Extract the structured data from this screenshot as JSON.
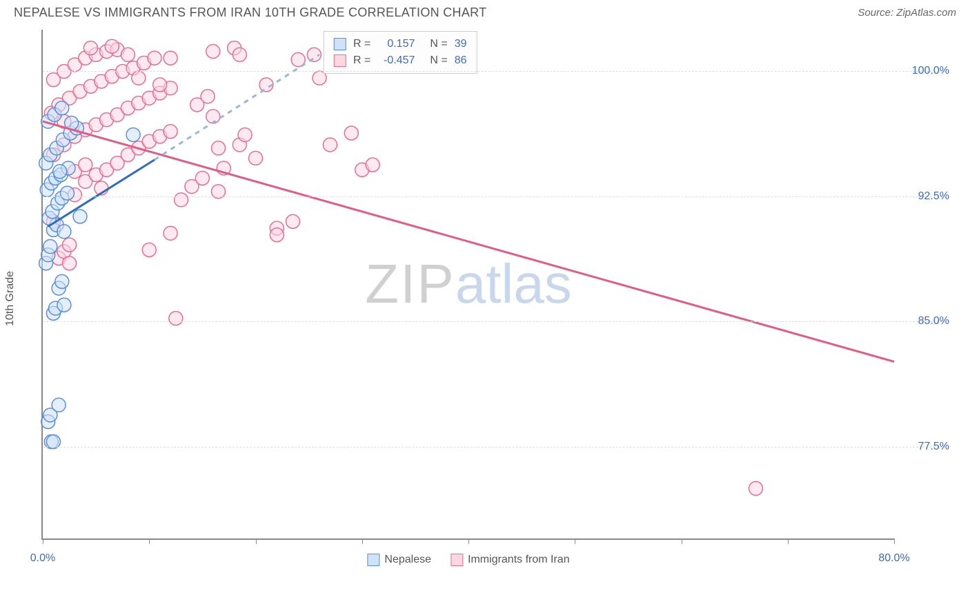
{
  "header": {
    "title": "NEPALESE VS IMMIGRANTS FROM IRAN 10TH GRADE CORRELATION CHART",
    "source_prefix": "Source: ",
    "source_name": "ZipAtlas.com"
  },
  "axes": {
    "y_label": "10th Grade",
    "x_min": 0.0,
    "x_max": 80.0,
    "y_min": 72.0,
    "y_max": 102.5,
    "x_ticks": [
      0,
      10,
      20,
      30,
      40,
      50,
      60,
      70,
      80
    ],
    "x_tick_labels": {
      "0": "0.0%",
      "80": "80.0%"
    },
    "y_ticks": [
      77.5,
      85.0,
      92.5,
      100.0
    ],
    "y_tick_labels": [
      "77.5%",
      "85.0%",
      "92.5%",
      "100.0%"
    ]
  },
  "watermark": {
    "part1": "ZIP",
    "part2": "atlas"
  },
  "series": {
    "a": {
      "name": "Nepalese",
      "fill": "#cfe2f7",
      "stroke": "#5a8fd6",
      "line_stroke": "#2f6cc0",
      "dash_stroke": "#9ab7d9",
      "R": "0.157",
      "N": "39",
      "trend_solid": {
        "x1": 0.5,
        "y1": 90.7,
        "x2": 10.5,
        "y2": 94.7
      },
      "trend_dash": {
        "x1": 10.5,
        "y1": 94.7,
        "x2": 26,
        "y2": 101.0
      },
      "points": [
        [
          0.5,
          79.0
        ],
        [
          0.7,
          79.4
        ],
        [
          0.8,
          77.8
        ],
        [
          1.0,
          77.8
        ],
        [
          1.5,
          80.0
        ],
        [
          1.0,
          85.5
        ],
        [
          1.2,
          85.8
        ],
        [
          1.5,
          87.0
        ],
        [
          1.8,
          87.4
        ],
        [
          2.0,
          86.0
        ],
        [
          0.3,
          88.5
        ],
        [
          0.5,
          89.0
        ],
        [
          0.7,
          89.5
        ],
        [
          1.0,
          90.5
        ],
        [
          1.3,
          90.8
        ],
        [
          0.6,
          91.2
        ],
        [
          0.9,
          91.6
        ],
        [
          1.4,
          92.1
        ],
        [
          1.8,
          92.4
        ],
        [
          2.3,
          92.7
        ],
        [
          0.4,
          92.9
        ],
        [
          0.8,
          93.3
        ],
        [
          1.2,
          93.6
        ],
        [
          1.7,
          93.8
        ],
        [
          2.4,
          94.2
        ],
        [
          0.3,
          94.5
        ],
        [
          0.7,
          95.0
        ],
        [
          1.3,
          95.4
        ],
        [
          1.9,
          95.9
        ],
        [
          2.6,
          96.3
        ],
        [
          3.2,
          96.6
        ],
        [
          0.5,
          97.0
        ],
        [
          1.1,
          97.4
        ],
        [
          1.8,
          97.8
        ],
        [
          2.7,
          96.9
        ],
        [
          8.5,
          96.2
        ],
        [
          3.5,
          91.3
        ],
        [
          2.0,
          90.4
        ],
        [
          1.6,
          94.0
        ]
      ]
    },
    "b": {
      "name": "Immigrants from Iran",
      "fill": "#fbd7e1",
      "stroke": "#e46f90",
      "line_stroke": "#e05c85",
      "R": "-0.457",
      "N": "86",
      "trend_solid": {
        "x1": 0.0,
        "y1": 97.0,
        "x2": 80.0,
        "y2": 82.6
      },
      "points": [
        [
          1.5,
          88.8
        ],
        [
          2.0,
          89.2
        ],
        [
          2.5,
          89.6
        ],
        [
          12.0,
          90.3
        ],
        [
          1.0,
          91.0
        ],
        [
          3.0,
          92.6
        ],
        [
          4.0,
          93.4
        ],
        [
          5.0,
          93.8
        ],
        [
          6.0,
          94.1
        ],
        [
          7.0,
          94.5
        ],
        [
          8.0,
          95.0
        ],
        [
          9.0,
          95.4
        ],
        [
          10.0,
          95.8
        ],
        [
          11.0,
          96.1
        ],
        [
          12.0,
          96.4
        ],
        [
          13.0,
          92.3
        ],
        [
          14.0,
          93.1
        ],
        [
          15.0,
          93.6
        ],
        [
          16.5,
          95.4
        ],
        [
          1.0,
          95.0
        ],
        [
          2.0,
          95.6
        ],
        [
          3.0,
          96.1
        ],
        [
          4.0,
          96.5
        ],
        [
          5.0,
          96.8
        ],
        [
          6.0,
          97.1
        ],
        [
          7.0,
          97.4
        ],
        [
          8.0,
          97.8
        ],
        [
          9.0,
          98.1
        ],
        [
          10.0,
          98.4
        ],
        [
          11.0,
          98.7
        ],
        [
          12.0,
          99.0
        ],
        [
          0.8,
          97.5
        ],
        [
          1.5,
          98.0
        ],
        [
          2.5,
          98.4
        ],
        [
          3.5,
          98.8
        ],
        [
          4.5,
          99.1
        ],
        [
          5.5,
          99.4
        ],
        [
          6.5,
          99.7
        ],
        [
          7.5,
          100.0
        ],
        [
          8.5,
          100.2
        ],
        [
          9.5,
          100.5
        ],
        [
          1.0,
          99.5
        ],
        [
          2.0,
          100.0
        ],
        [
          3.0,
          100.4
        ],
        [
          4.0,
          100.8
        ],
        [
          5.0,
          101.0
        ],
        [
          6.0,
          101.2
        ],
        [
          7.0,
          101.3
        ],
        [
          8.0,
          101.0
        ],
        [
          4.5,
          101.4
        ],
        [
          6.5,
          101.5
        ],
        [
          16.0,
          101.2
        ],
        [
          18.0,
          101.4
        ],
        [
          18.5,
          101.0
        ],
        [
          10.5,
          100.8
        ],
        [
          12.0,
          100.8
        ],
        [
          11.0,
          99.2
        ],
        [
          9.0,
          99.6
        ],
        [
          3.0,
          94.0
        ],
        [
          4.0,
          94.4
        ],
        [
          17.0,
          94.2
        ],
        [
          18.5,
          95.6
        ],
        [
          19.0,
          96.2
        ],
        [
          14.5,
          98.0
        ],
        [
          15.5,
          98.5
        ],
        [
          16.0,
          97.3
        ],
        [
          16.5,
          92.8
        ],
        [
          20.0,
          94.8
        ],
        [
          21.0,
          99.2
        ],
        [
          22.0,
          90.6
        ],
        [
          23.5,
          91.0
        ],
        [
          24.0,
          100.7
        ],
        [
          25.5,
          101.0
        ],
        [
          26.0,
          99.6
        ],
        [
          27.0,
          95.6
        ],
        [
          28.5,
          100.8
        ],
        [
          29.0,
          96.3
        ],
        [
          30.0,
          94.1
        ],
        [
          31.0,
          94.4
        ],
        [
          10.0,
          89.3
        ],
        [
          12.5,
          85.2
        ],
        [
          67.0,
          75.0
        ],
        [
          2.5,
          88.5
        ],
        [
          22.0,
          90.2
        ],
        [
          2.0,
          97.0
        ],
        [
          5.5,
          93.0
        ]
      ]
    }
  },
  "legend": {
    "a_label": "Nepalese",
    "b_label": "Immigrants from Iran"
  },
  "style": {
    "marker_radius": 10,
    "marker_opacity": 0.55,
    "grid_color": "#dddddd",
    "axis_color": "#888888",
    "tick_label_color": "#3b6bbf"
  }
}
